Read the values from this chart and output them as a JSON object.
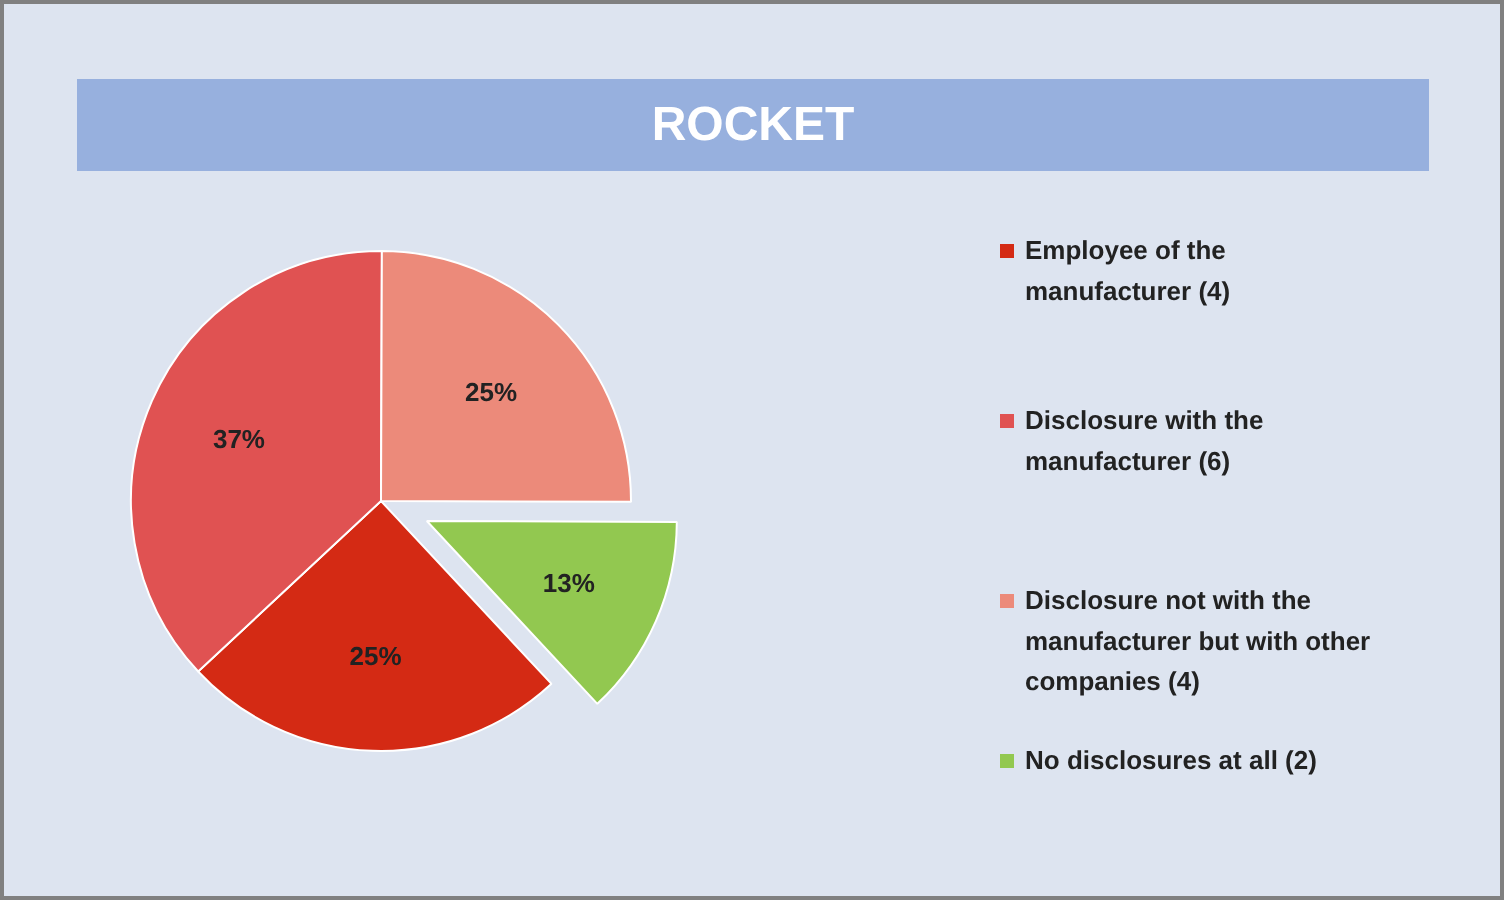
{
  "chart_data": {
    "type": "pie",
    "title": "ROCKET",
    "categories": [
      "Employee of the manufacturer (4)",
      "Disclosure with the manufacturer (6)",
      "Disclosure not with the manufacturer but with other companies (4)",
      "No disclosures at all (2)"
    ],
    "values": [
      25,
      37,
      25,
      13
    ],
    "colors": [
      "#d42a14",
      "#e05252",
      "#ec8a7a",
      "#92c850"
    ],
    "value_labels": [
      "25%",
      "37%",
      "25%",
      "13%"
    ],
    "legend": "right"
  }
}
